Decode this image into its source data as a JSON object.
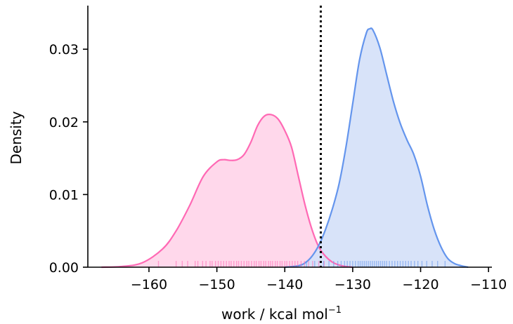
{
  "chart_data": {
    "type": "area",
    "xlabel": "work / kcal mol",
    "xlabel_superscript": "−1",
    "ylabel": "Density",
    "xlim": [
      -169,
      -109.5
    ],
    "ylim": [
      0,
      0.036
    ],
    "x_ticks": [
      -160,
      -150,
      -140,
      -130,
      -120,
      -110
    ],
    "x_tick_labels": [
      "−160",
      "−150",
      "−140",
      "−130",
      "−120",
      "−110"
    ],
    "y_ticks": [
      0.0,
      0.01,
      0.02,
      0.03
    ],
    "y_tick_labels": [
      "0.00",
      "0.01",
      "0.02",
      "0.03"
    ],
    "grid": false,
    "vline": {
      "x": -134.7,
      "style": "dotted",
      "color": "#000000"
    },
    "series": [
      {
        "color": "#ff69b4",
        "fill": "#ffd6ea",
        "x": [
          -167,
          -164,
          -161,
          -158,
          -156,
          -154,
          -152,
          -150,
          -149,
          -148,
          -147,
          -146,
          -145,
          -144,
          -143,
          -142,
          -141,
          -140,
          -139,
          -138,
          -137,
          -136,
          -135,
          -134,
          -133,
          -132,
          -131,
          -130
        ],
        "y": [
          0.0,
          0.0001,
          0.0006,
          0.0025,
          0.005,
          0.0085,
          0.0125,
          0.0145,
          0.0148,
          0.0147,
          0.0148,
          0.0155,
          0.0172,
          0.0195,
          0.0208,
          0.021,
          0.0204,
          0.0188,
          0.0165,
          0.0125,
          0.0085,
          0.0052,
          0.0028,
          0.0015,
          0.0007,
          0.0003,
          0.0001,
          0.0
        ]
      },
      {
        "color": "#6495ed",
        "fill": "#d6e2f9",
        "x": [
          -140,
          -138,
          -137,
          -136,
          -135,
          -134,
          -133,
          -132,
          -131,
          -130,
          -129,
          -128,
          -127.5,
          -127,
          -126,
          -125,
          -124,
          -123,
          -122,
          -121,
          -120,
          -119,
          -118,
          -117,
          -116,
          -115,
          -114,
          -113
        ],
        "y": [
          0.0,
          0.0002,
          0.0006,
          0.0015,
          0.003,
          0.0052,
          0.008,
          0.0115,
          0.0165,
          0.0225,
          0.0285,
          0.0322,
          0.0328,
          0.0326,
          0.0302,
          0.0265,
          0.0228,
          0.0198,
          0.0175,
          0.0155,
          0.0125,
          0.0085,
          0.0052,
          0.0028,
          0.0012,
          0.0005,
          0.0002,
          0.0
        ]
      }
    ],
    "rugs": [
      {
        "color": "#ff69b4",
        "x": [
          -158.6,
          -156.0,
          -155.1,
          -154.3,
          -153.2,
          -152.8,
          -152.1,
          -151.6,
          -151.0,
          -150.7,
          -150.2,
          -149.8,
          -149.4,
          -149.0,
          -148.6,
          -148.2,
          -147.9,
          -147.5,
          -147.1,
          -146.8,
          -146.4,
          -146.0,
          -145.6,
          -145.3,
          -144.9,
          -144.5,
          -144.2,
          -143.8,
          -143.5,
          -143.1,
          -142.8,
          -142.4,
          -142.1,
          -141.8,
          -141.4,
          -141.1,
          -140.7,
          -140.4,
          -140.0,
          -139.7,
          -139.3,
          -138.9,
          -138.5,
          -138.1,
          -137.6,
          -137.1,
          -136.5,
          -135.9,
          -135.0,
          -134.2
        ]
      },
      {
        "color": "#6495ed",
        "x": [
          -136.8,
          -135.6,
          -134.3,
          -133.5,
          -132.8,
          -132.2,
          -131.7,
          -131.2,
          -130.8,
          -130.4,
          -130.0,
          -129.6,
          -129.2,
          -128.9,
          -128.6,
          -128.3,
          -128.0,
          -127.7,
          -127.4,
          -127.1,
          -126.8,
          -126.5,
          -126.2,
          -125.9,
          -125.6,
          -125.3,
          -125.0,
          -124.6,
          -124.2,
          -123.8,
          -123.4,
          -123.0,
          -122.6,
          -122.2,
          -121.8,
          -121.4,
          -120.9,
          -120.4,
          -119.8,
          -119.1,
          -118.3,
          -117.5,
          -116.4
        ]
      }
    ]
  }
}
